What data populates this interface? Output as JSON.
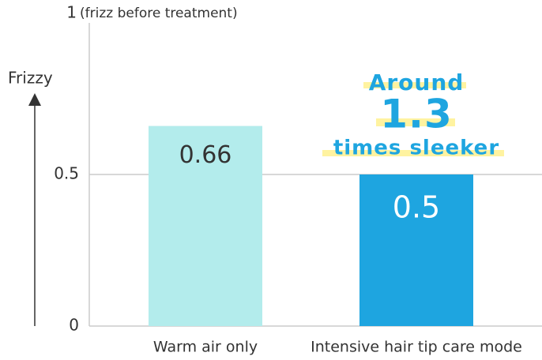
{
  "chart_data": {
    "type": "bar",
    "y_axis_label": "Frizzy",
    "top_tick_note": "(frizz before treatment)",
    "categories": [
      "Warm air only",
      "Intensive hair tip care mode"
    ],
    "values": [
      0.66,
      0.5
    ],
    "colors": [
      "#b3ecec",
      "#1ea5e0"
    ],
    "ylim": [
      0,
      1
    ],
    "yticks": [
      0,
      0.5,
      1
    ],
    "grid": true,
    "annotation": {
      "line1": "Around",
      "line2": "1.3",
      "line3": "times sleeker",
      "color": "#1ea5e0",
      "highlight": "#fff3a0"
    }
  }
}
